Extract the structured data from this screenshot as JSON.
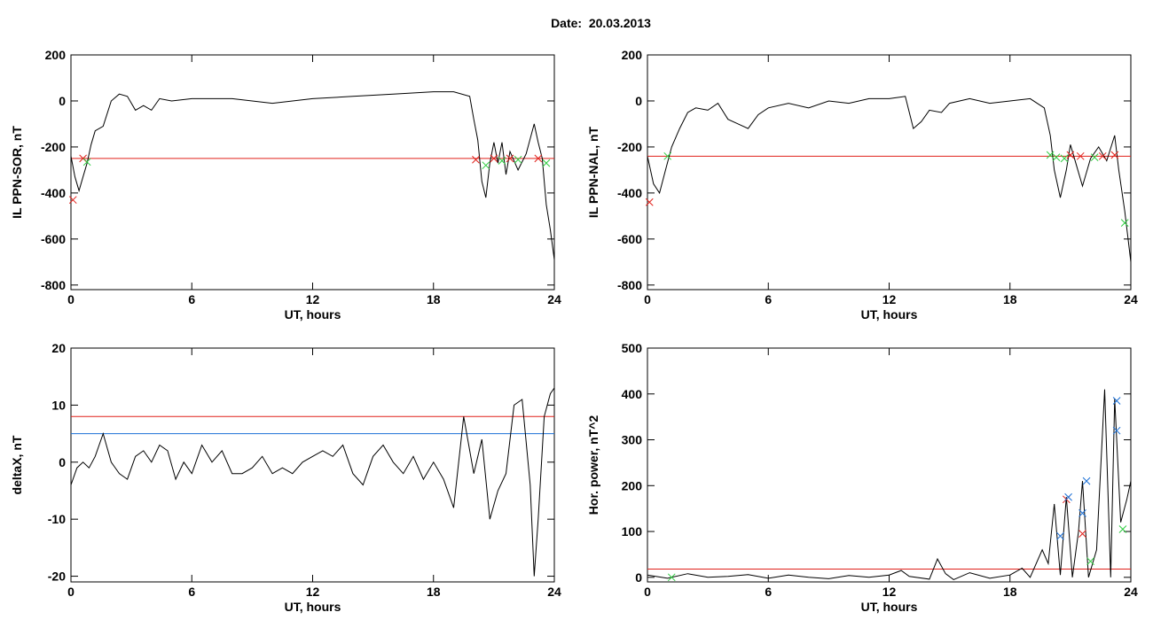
{
  "page": {
    "title": "Date:  20.03.2013"
  },
  "colors": {
    "axis": "#000000",
    "trace": "#000000",
    "threshold_red": "#e0201a",
    "threshold_blue": "#1a6fd6",
    "marker_green": "#2ecc40",
    "marker_red": "#e0201a",
    "marker_blue": "#1a6fd6"
  },
  "chart_data": [
    {
      "id": "sor",
      "type": "line",
      "xlabel": "UT, hours",
      "ylabel": "IL PPN-SOR, nT",
      "xlim": [
        0,
        24
      ],
      "ylim": [
        -820,
        200
      ],
      "xticks": [
        0,
        6,
        12,
        18,
        24
      ],
      "yticks": [
        -800,
        -600,
        -400,
        -200,
        0,
        200
      ],
      "threshold": {
        "value": -250,
        "color": "red"
      },
      "series": [
        {
          "color": "black",
          "points": [
            [
              0,
              -240
            ],
            [
              0.2,
              -330
            ],
            [
              0.4,
              -390
            ],
            [
              0.6,
              -330
            ],
            [
              0.8,
              -270
            ],
            [
              1.0,
              -190
            ],
            [
              1.2,
              -130
            ],
            [
              1.6,
              -110
            ],
            [
              2.0,
              0
            ],
            [
              2.4,
              30
            ],
            [
              2.8,
              20
            ],
            [
              3.2,
              -40
            ],
            [
              3.6,
              -20
            ],
            [
              4.0,
              -40
            ],
            [
              4.4,
              10
            ],
            [
              5.0,
              0
            ],
            [
              6,
              10
            ],
            [
              8,
              10
            ],
            [
              10,
              -10
            ],
            [
              12,
              10
            ],
            [
              14,
              20
            ],
            [
              16,
              30
            ],
            [
              18,
              40
            ],
            [
              19,
              40
            ],
            [
              19.8,
              20
            ],
            [
              20.0,
              -80
            ],
            [
              20.2,
              -170
            ],
            [
              20.4,
              -350
            ],
            [
              20.6,
              -420
            ],
            [
              20.8,
              -270
            ],
            [
              21.0,
              -180
            ],
            [
              21.2,
              -270
            ],
            [
              21.4,
              -180
            ],
            [
              21.6,
              -320
            ],
            [
              21.8,
              -220
            ],
            [
              22.2,
              -300
            ],
            [
              22.6,
              -230
            ],
            [
              23.0,
              -100
            ],
            [
              23.2,
              -180
            ],
            [
              23.4,
              -250
            ],
            [
              23.6,
              -450
            ],
            [
              23.8,
              -560
            ],
            [
              24,
              -690
            ]
          ]
        }
      ],
      "markers": [
        {
          "x": 0.1,
          "y": -430,
          "color": "red"
        },
        {
          "x": 0.6,
          "y": -250,
          "color": "red"
        },
        {
          "x": 0.8,
          "y": -265,
          "color": "green"
        },
        {
          "x": 20.1,
          "y": -255,
          "color": "red"
        },
        {
          "x": 20.6,
          "y": -280,
          "color": "green"
        },
        {
          "x": 21.0,
          "y": -250,
          "color": "red"
        },
        {
          "x": 21.4,
          "y": -260,
          "color": "green"
        },
        {
          "x": 21.8,
          "y": -250,
          "color": "red"
        },
        {
          "x": 22.2,
          "y": -255,
          "color": "green"
        },
        {
          "x": 23.2,
          "y": -250,
          "color": "red"
        },
        {
          "x": 23.6,
          "y": -270,
          "color": "green"
        }
      ]
    },
    {
      "id": "nal",
      "type": "line",
      "xlabel": "UT, hours",
      "ylabel": "IL PPN-NAL, nT",
      "xlim": [
        0,
        24
      ],
      "ylim": [
        -820,
        200
      ],
      "xticks": [
        0,
        6,
        12,
        18,
        24
      ],
      "yticks": [
        -800,
        -600,
        -400,
        -200,
        0,
        200
      ],
      "threshold": {
        "value": -240,
        "color": "red"
      },
      "series": [
        {
          "color": "black",
          "points": [
            [
              0,
              -240
            ],
            [
              0.3,
              -360
            ],
            [
              0.6,
              -400
            ],
            [
              0.9,
              -300
            ],
            [
              1.2,
              -200
            ],
            [
              1.6,
              -120
            ],
            [
              2.0,
              -50
            ],
            [
              2.4,
              -30
            ],
            [
              3.0,
              -40
            ],
            [
              3.5,
              -10
            ],
            [
              4.0,
              -80
            ],
            [
              4.5,
              -100
            ],
            [
              5.0,
              -120
            ],
            [
              5.5,
              -60
            ],
            [
              6,
              -30
            ],
            [
              7,
              -10
            ],
            [
              8,
              -30
            ],
            [
              9,
              0
            ],
            [
              10,
              -10
            ],
            [
              11,
              10
            ],
            [
              12,
              10
            ],
            [
              12.8,
              20
            ],
            [
              13.2,
              -120
            ],
            [
              13.6,
              -90
            ],
            [
              14.0,
              -40
            ],
            [
              14.6,
              -50
            ],
            [
              15,
              -10
            ],
            [
              16,
              10
            ],
            [
              17,
              -10
            ],
            [
              18,
              0
            ],
            [
              19,
              10
            ],
            [
              19.7,
              -30
            ],
            [
              20.0,
              -150
            ],
            [
              20.2,
              -300
            ],
            [
              20.5,
              -420
            ],
            [
              20.8,
              -300
            ],
            [
              21.0,
              -190
            ],
            [
              21.3,
              -280
            ],
            [
              21.6,
              -370
            ],
            [
              22.0,
              -250
            ],
            [
              22.4,
              -200
            ],
            [
              22.8,
              -260
            ],
            [
              23.2,
              -150
            ],
            [
              23.4,
              -300
            ],
            [
              23.7,
              -480
            ],
            [
              24,
              -700
            ]
          ]
        }
      ],
      "markers": [
        {
          "x": 0.1,
          "y": -440,
          "color": "red"
        },
        {
          "x": 1.0,
          "y": -240,
          "color": "green"
        },
        {
          "x": 20.0,
          "y": -235,
          "color": "green"
        },
        {
          "x": 20.3,
          "y": -245,
          "color": "green"
        },
        {
          "x": 20.7,
          "y": -250,
          "color": "green"
        },
        {
          "x": 21.0,
          "y": -235,
          "color": "red"
        },
        {
          "x": 21.5,
          "y": -240,
          "color": "red"
        },
        {
          "x": 22.2,
          "y": -245,
          "color": "green"
        },
        {
          "x": 22.6,
          "y": -240,
          "color": "red"
        },
        {
          "x": 23.2,
          "y": -235,
          "color": "red"
        },
        {
          "x": 23.7,
          "y": -530,
          "color": "green"
        }
      ]
    },
    {
      "id": "deltax",
      "type": "line",
      "xlabel": "UT, hours",
      "ylabel": "deltaX, nT",
      "xlim": [
        0,
        24
      ],
      "ylim": [
        -21,
        20
      ],
      "xticks": [
        0,
        6,
        12,
        18,
        24
      ],
      "yticks": [
        -20,
        -10,
        0,
        10,
        20
      ],
      "thresholds": [
        {
          "value": 8,
          "color": "red"
        },
        {
          "value": 5,
          "color": "blue"
        }
      ],
      "series": [
        {
          "color": "black",
          "points": [
            [
              0,
              -4
            ],
            [
              0.3,
              -1
            ],
            [
              0.6,
              0
            ],
            [
              0.9,
              -1
            ],
            [
              1.2,
              1
            ],
            [
              1.6,
              5
            ],
            [
              2.0,
              0
            ],
            [
              2.4,
              -2
            ],
            [
              2.8,
              -3
            ],
            [
              3.2,
              1
            ],
            [
              3.6,
              2
            ],
            [
              4.0,
              0
            ],
            [
              4.4,
              3
            ],
            [
              4.8,
              2
            ],
            [
              5.2,
              -3
            ],
            [
              5.6,
              0
            ],
            [
              6.0,
              -2
            ],
            [
              6.5,
              3
            ],
            [
              7.0,
              0
            ],
            [
              7.5,
              2
            ],
            [
              8.0,
              -2
            ],
            [
              8.5,
              -2
            ],
            [
              9.0,
              -1
            ],
            [
              9.5,
              1
            ],
            [
              10.0,
              -2
            ],
            [
              10.5,
              -1
            ],
            [
              11.0,
              -2
            ],
            [
              11.5,
              0
            ],
            [
              12.0,
              1
            ],
            [
              12.5,
              2
            ],
            [
              13.0,
              1
            ],
            [
              13.5,
              3
            ],
            [
              14.0,
              -2
            ],
            [
              14.5,
              -4
            ],
            [
              15.0,
              1
            ],
            [
              15.5,
              3
            ],
            [
              16.0,
              0
            ],
            [
              16.5,
              -2
            ],
            [
              17.0,
              1
            ],
            [
              17.5,
              -3
            ],
            [
              18.0,
              0
            ],
            [
              18.5,
              -3
            ],
            [
              19.0,
              -8
            ],
            [
              19.5,
              8
            ],
            [
              20.0,
              -2
            ],
            [
              20.4,
              4
            ],
            [
              20.8,
              -10
            ],
            [
              21.2,
              -5
            ],
            [
              21.6,
              -2
            ],
            [
              22.0,
              10
            ],
            [
              22.4,
              11
            ],
            [
              22.8,
              -4
            ],
            [
              23.0,
              -20
            ],
            [
              23.2,
              -10
            ],
            [
              23.5,
              8
            ],
            [
              23.8,
              12
            ],
            [
              24,
              13
            ]
          ]
        }
      ]
    },
    {
      "id": "power",
      "type": "line",
      "xlabel": "UT, hours",
      "ylabel": "Hor. power, nT^2",
      "xlim": [
        0,
        24
      ],
      "ylim": [
        -10,
        500
      ],
      "xticks": [
        0,
        6,
        12,
        18,
        24
      ],
      "yticks": [
        0,
        100,
        200,
        300,
        400,
        500
      ],
      "threshold": {
        "value": 18,
        "color": "red"
      },
      "series": [
        {
          "color": "black",
          "points": [
            [
              0,
              5
            ],
            [
              1,
              -2
            ],
            [
              2,
              8
            ],
            [
              3,
              0
            ],
            [
              4,
              2
            ],
            [
              5,
              6
            ],
            [
              6,
              -2
            ],
            [
              7,
              5
            ],
            [
              8,
              0
            ],
            [
              9,
              -3
            ],
            [
              10,
              4
            ],
            [
              11,
              0
            ],
            [
              12,
              5
            ],
            [
              12.6,
              15
            ],
            [
              13,
              2
            ],
            [
              14,
              -4
            ],
            [
              14.4,
              40
            ],
            [
              14.8,
              8
            ],
            [
              15.2,
              -5
            ],
            [
              16,
              10
            ],
            [
              17,
              -2
            ],
            [
              18,
              5
            ],
            [
              18.6,
              20
            ],
            [
              19,
              0
            ],
            [
              19.6,
              60
            ],
            [
              19.9,
              30
            ],
            [
              20.2,
              160
            ],
            [
              20.5,
              5
            ],
            [
              20.8,
              175
            ],
            [
              21.1,
              0
            ],
            [
              21.4,
              100
            ],
            [
              21.6,
              210
            ],
            [
              21.9,
              0
            ],
            [
              22.3,
              60
            ],
            [
              22.7,
              410
            ],
            [
              23.0,
              0
            ],
            [
              23.2,
              390
            ],
            [
              23.5,
              120
            ],
            [
              23.8,
              170
            ],
            [
              24,
              210
            ]
          ]
        }
      ],
      "markers": [
        {
          "x": 20.8,
          "y": 170,
          "color": "red"
        },
        {
          "x": 21.6,
          "y": 95,
          "color": "red"
        },
        {
          "x": 20.5,
          "y": 90,
          "color": "blue"
        },
        {
          "x": 20.9,
          "y": 175,
          "color": "blue"
        },
        {
          "x": 21.6,
          "y": 140,
          "color": "blue"
        },
        {
          "x": 21.8,
          "y": 210,
          "color": "blue"
        },
        {
          "x": 22.0,
          "y": 35,
          "color": "green"
        },
        {
          "x": 23.3,
          "y": 385,
          "color": "blue"
        },
        {
          "x": 23.3,
          "y": 320,
          "color": "blue"
        },
        {
          "x": 23.6,
          "y": 105,
          "color": "green"
        },
        {
          "x": 1.2,
          "y": 0,
          "color": "green"
        }
      ]
    }
  ]
}
